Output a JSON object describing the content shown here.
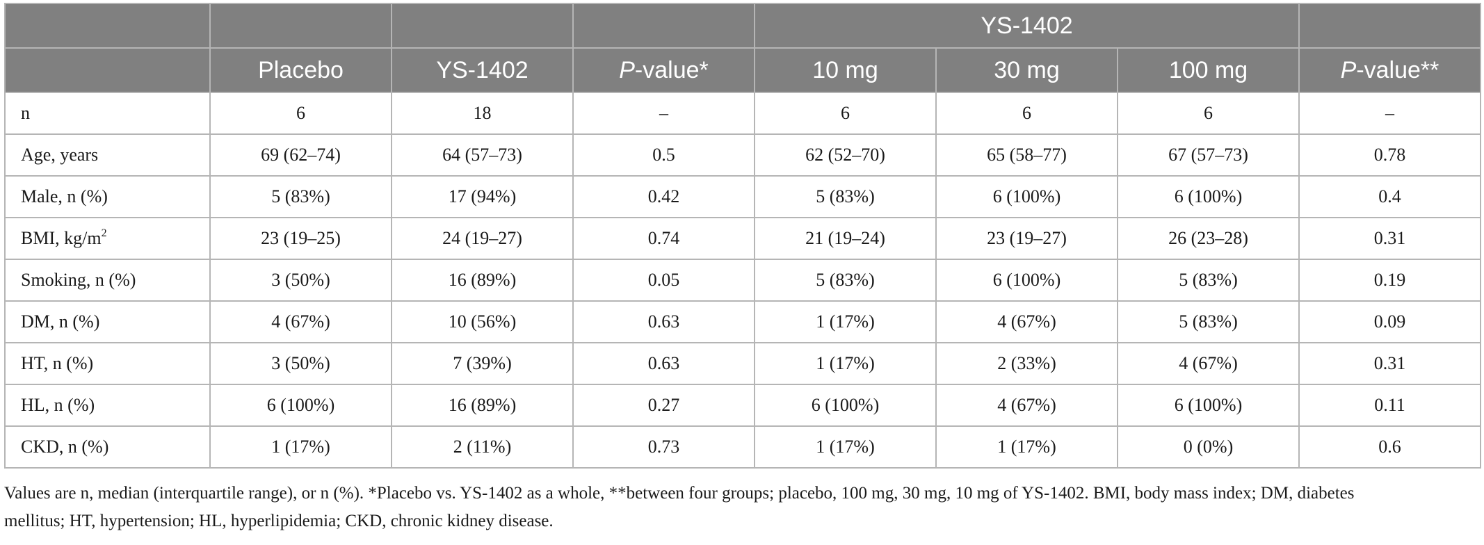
{
  "table": {
    "group_header": {
      "blank1": "",
      "blank2": "",
      "blank3": "",
      "blank4": "",
      "ys_group": "YS-1402",
      "blank5": ""
    },
    "columns": {
      "label": "",
      "placebo": "Placebo",
      "ys1402": "YS-1402",
      "pvalue1_italic": "P",
      "pvalue1_rest": "-value*",
      "dose10": "10 mg",
      "dose30": "30 mg",
      "dose100": "100 mg",
      "pvalue2_italic": "P",
      "pvalue2_rest": "-value**"
    },
    "rows": [
      {
        "label": "n",
        "cells": [
          "6",
          "18",
          "–",
          "6",
          "6",
          "6",
          "–"
        ]
      },
      {
        "label": "Age, years",
        "cells": [
          "69 (62–74)",
          "64 (57–73)",
          "0.5",
          "62 (52–70)",
          "65 (58–77)",
          "67 (57–73)",
          "0.78"
        ]
      },
      {
        "label": "Male, n (%)",
        "cells": [
          "5 (83%)",
          "17 (94%)",
          "0.42",
          "5 (83%)",
          "6 (100%)",
          "6 (100%)",
          "0.4"
        ]
      },
      {
        "label": "BMI, kg/m",
        "label_sup": "2",
        "cells": [
          "23 (19–25)",
          "24 (19–27)",
          "0.74",
          "21 (19–24)",
          "23 (19–27)",
          "26 (23–28)",
          "0.31"
        ]
      },
      {
        "label": "Smoking, n (%)",
        "cells": [
          "3 (50%)",
          "16 (89%)",
          "0.05",
          "5 (83%)",
          "6 (100%)",
          "5 (83%)",
          "0.19"
        ]
      },
      {
        "label": "DM, n (%)",
        "cells": [
          "4 (67%)",
          "10 (56%)",
          "0.63",
          "1 (17%)",
          "4 (67%)",
          "5 (83%)",
          "0.09"
        ]
      },
      {
        "label": "HT, n (%)",
        "cells": [
          "3 (50%)",
          "7 (39%)",
          "0.63",
          "1 (17%)",
          "2 (33%)",
          "4 (67%)",
          "0.31"
        ]
      },
      {
        "label": "HL, n (%)",
        "cells": [
          "6 (100%)",
          "16 (89%)",
          "0.27",
          "6 (100%)",
          "4 (67%)",
          "6 (100%)",
          "0.11"
        ]
      },
      {
        "label": "CKD, n (%)",
        "cells": [
          "1 (17%)",
          "2 (11%)",
          "0.73",
          "1 (17%)",
          "1 (17%)",
          "0 (0%)",
          "0.6"
        ]
      }
    ]
  },
  "footnote": {
    "line1": "Values are n, median (interquartile range), or n (%). *Placebo vs. YS-1402 as a whole, **between four groups; placebo, 100 mg, 30 mg, 10 mg of YS-1402. BMI, body mass index; DM, diabetes",
    "line2": "mellitus; HT, hypertension; HL, hyperlipidemia; CKD, chronic kidney disease."
  },
  "colors": {
    "header_bg": "#808080",
    "header_text": "#ffffff",
    "border": "#b5b5b5"
  }
}
